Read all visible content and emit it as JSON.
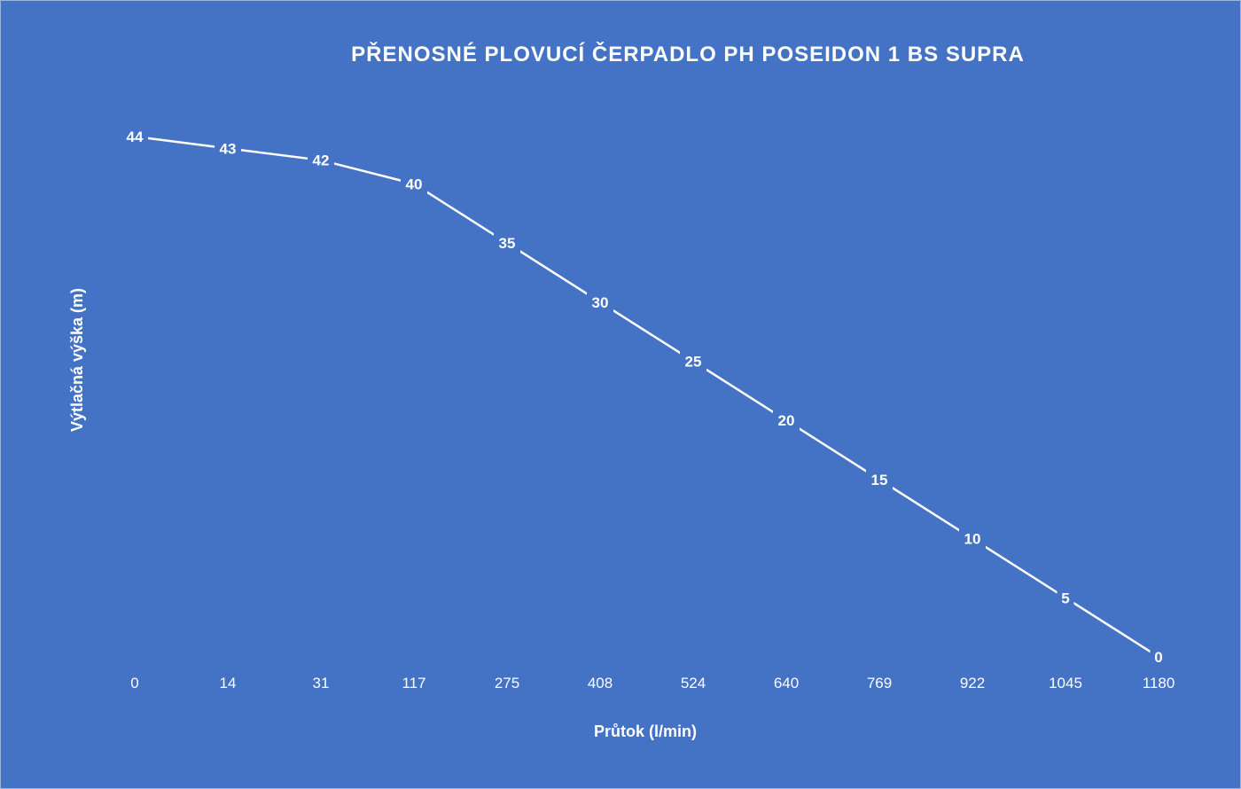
{
  "chart_data": {
    "type": "line",
    "title": "PŘENOSNÉ PLOVUCÍ ČERPADLO PH POSEIDON 1 BS SUPRA",
    "xlabel": "Průtok (l/min)",
    "ylabel": "Výtlačná výška (m)",
    "categories": [
      "0",
      "14",
      "31",
      "117",
      "275",
      "408",
      "524",
      "640",
      "769",
      "922",
      "1045",
      "1180"
    ],
    "series": [
      {
        "values": [
          44,
          43,
          42,
          40,
          35,
          30,
          25,
          20,
          15,
          10,
          5,
          0
        ]
      }
    ],
    "ylim": [
      0,
      44
    ],
    "x_axis_type": "category",
    "data_labels": true,
    "drop_lines": true,
    "grid": false,
    "legend": "none",
    "colors": {
      "background": "#4472C4",
      "line": "#FFFFFF",
      "text": "#FFFFFF"
    }
  }
}
